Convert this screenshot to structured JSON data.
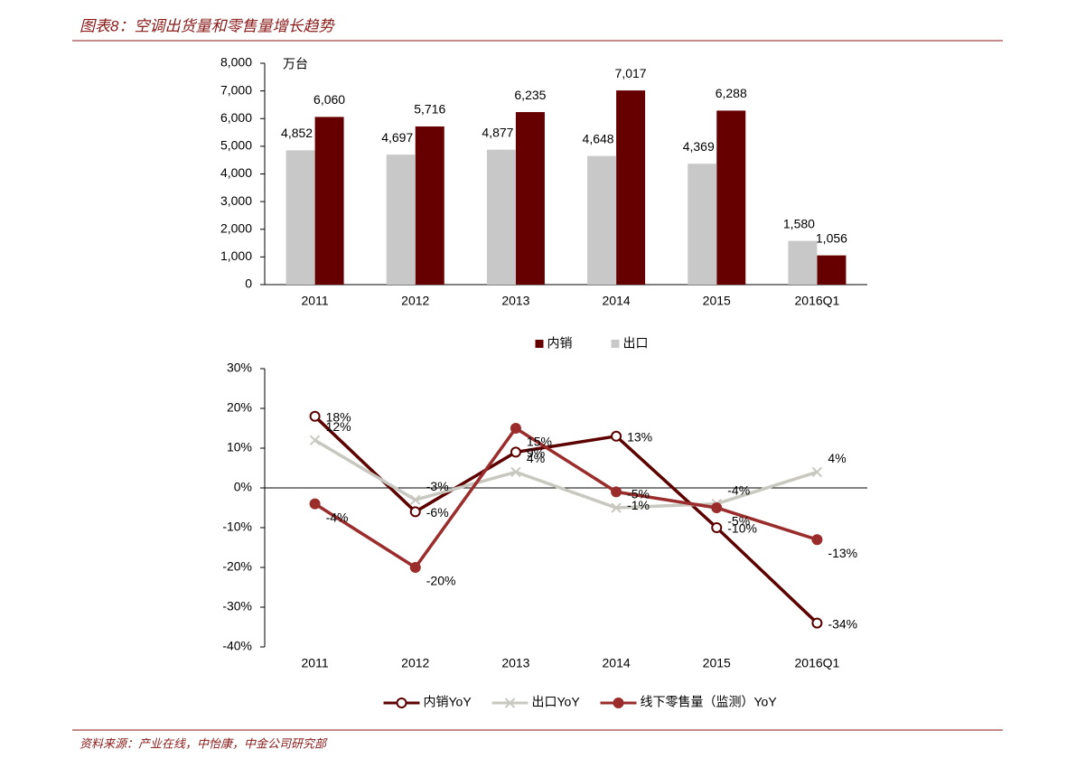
{
  "header": {
    "title": "图表8：空调出货量和零售量增长趋势"
  },
  "source": "资料来源：产业在线，中怡康，中金公司研究部",
  "chart_data": [
    {
      "type": "bar",
      "unit_label": "万台",
      "categories": [
        "2011",
        "2012",
        "2013",
        "2014",
        "2015",
        "2016Q1"
      ],
      "series": [
        {
          "name": "内销",
          "color": "#660000",
          "values": [
            6060,
            5716,
            6235,
            7017,
            6288,
            1056
          ],
          "value_labels": [
            "6,060",
            "5,716",
            "6,235",
            "7,017",
            "6,288",
            "1,056"
          ]
        },
        {
          "name": "出口",
          "color": "#c8c8c8",
          "values": [
            4852,
            4697,
            4877,
            4648,
            4369,
            1580
          ],
          "value_labels": [
            "4,852",
            "4,697",
            "4,877",
            "4,648",
            "4,369",
            "1,580"
          ]
        }
      ],
      "ylim": [
        0,
        8000
      ],
      "yticks": [
        0,
        {
          "value": 1000,
          "label": "1,000"
        },
        {
          "value": 2000,
          "label": "2,000"
        },
        {
          "value": 3000,
          "label": "3,000"
        },
        {
          "value": 4000,
          "label": "4,000"
        },
        {
          "value": 5000,
          "label": "5,000"
        },
        {
          "value": 6000,
          "label": "6,000"
        },
        {
          "value": 7000,
          "label": "7,000"
        },
        {
          "value": 8000,
          "label": "8,000"
        }
      ],
      "grid": false,
      "legend": "bottom"
    },
    {
      "type": "line",
      "categories": [
        "2011",
        "2012",
        "2013",
        "2014",
        "2015",
        "2016Q1"
      ],
      "series": [
        {
          "name": "内销YoY",
          "color": "#5c0000",
          "marker": "circle-open",
          "values": [
            18,
            -6,
            9,
            13,
            -10,
            -34
          ],
          "value_labels": [
            "18%",
            "-6%",
            "9%",
            "13%",
            "-10%",
            "-34%"
          ]
        },
        {
          "name": "出口YoY",
          "color": "#c8c8c0",
          "marker": "x",
          "values": [
            12,
            -3,
            4,
            -5,
            -4,
            4
          ],
          "value_labels": [
            "12%",
            "-3%",
            "4%",
            "-5%",
            "-4%",
            "4%"
          ]
        },
        {
          "name": "线下零售量（监测）YoY",
          "color": "#9b2c2c",
          "marker": "circle",
          "values": [
            -4,
            -20,
            15,
            -1,
            -5,
            -13
          ],
          "value_labels": [
            "-4%",
            "-20%",
            "15%",
            "-1%",
            "-5%",
            "-13%"
          ]
        }
      ],
      "ylim": [
        -40,
        30
      ],
      "yticks": [
        {
          "value": -40,
          "label": "-40%"
        },
        {
          "value": -30,
          "label": "-30%"
        },
        {
          "value": -20,
          "label": "-20%"
        },
        {
          "value": -10,
          "label": "-10%"
        },
        {
          "value": 0,
          "label": "0%"
        },
        {
          "value": 10,
          "label": "10%"
        },
        {
          "value": 20,
          "label": "20%"
        },
        {
          "value": 30,
          "label": "30%"
        }
      ],
      "grid": false,
      "legend": "bottom"
    }
  ]
}
